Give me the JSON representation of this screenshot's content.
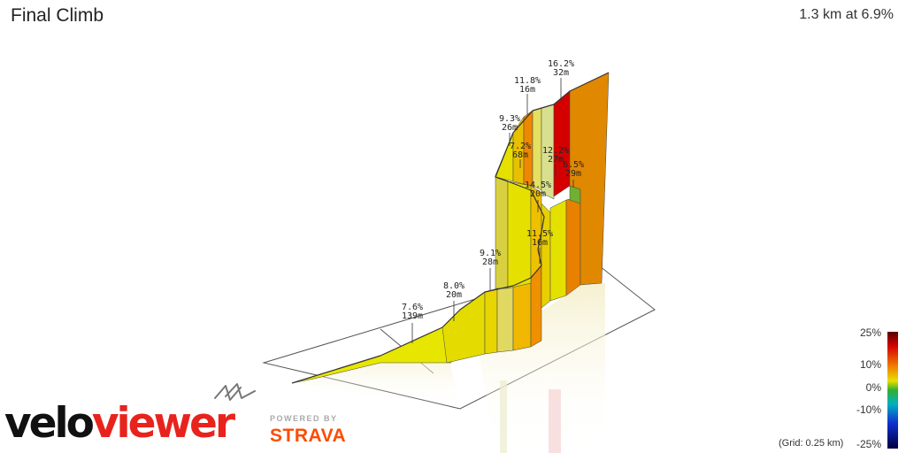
{
  "header": {
    "title": "Final Climb",
    "summary": "1.3 km at 6.9%"
  },
  "chart_data": {
    "type": "area",
    "title": "Final Climb",
    "subtitle": "1.3 km at 6.9%",
    "segments": [
      {
        "grade": "7.6%",
        "length": "139m",
        "color": "#e6e600"
      },
      {
        "grade": "8.0%",
        "length": "20m",
        "color": "#e4d400"
      },
      {
        "grade": "9.1%",
        "length": "28m",
        "color": "#e8c800"
      },
      {
        "grade": "11.5%",
        "length": "16m",
        "color": "#f0b000"
      },
      {
        "grade": "14.5%",
        "length": "20m",
        "color": "#ee9000"
      },
      {
        "grade": "6.5%",
        "length": "29m",
        "color": "#80c020"
      },
      {
        "grade": "12.2%",
        "length": "27m",
        "color": "#e23000"
      },
      {
        "grade": "7.2%",
        "length": "68m",
        "color": "#e6e000"
      },
      {
        "grade": "9.3%",
        "length": "26m",
        "color": "#e8c000"
      },
      {
        "grade": "11.8%",
        "length": "16m",
        "color": "#ee8800"
      },
      {
        "grade": "16.2%",
        "length": "32m",
        "color": "#d40000"
      }
    ],
    "legend": {
      "ticks": [
        "25%",
        "10%",
        "0%",
        "-10%",
        "-25%"
      ],
      "placement": "bottom-right"
    },
    "grid_note": "(Grid: 0.25 km)",
    "grid": true
  },
  "branding": {
    "velo": "velo",
    "viewer": "viewer",
    "powered_by": "POWERED BY",
    "strava": "STRAVA"
  }
}
